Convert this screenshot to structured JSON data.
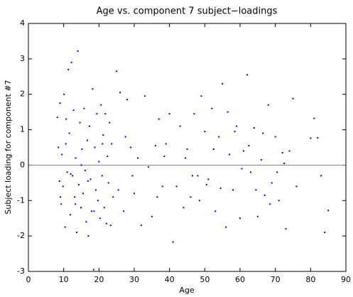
{
  "chart_data": {
    "type": "scatter",
    "title": "Age vs. component 7 subject−loadings",
    "x_label": "Age",
    "y_label": "Subject loading for component #7",
    "xlim": [
      0,
      90
    ],
    "xticks": [
      0,
      10,
      20,
      30,
      40,
      50,
      60,
      70,
      80,
      90
    ],
    "ylim": [
      -3,
      4
    ],
    "yticks": [
      -3,
      -2,
      -1,
      0,
      1,
      2,
      3,
      4
    ],
    "reference_line": {
      "y": 0,
      "color": "#808080"
    },
    "series": [
      {
        "color": "#0000ff",
        "x": [
          8.2,
          8.5,
          8.8,
          9.0,
          9.3,
          9.5,
          9.8,
          10.1,
          10.4,
          10.7,
          11.0,
          11.3,
          11.6,
          11.9,
          12.2,
          12.5,
          12.8,
          13.1,
          13.4,
          13.7,
          14.0,
          14.3,
          14.6,
          14.9,
          15.2,
          15.5,
          15.8,
          16.1,
          16.4,
          16.7,
          17.0,
          17.3,
          17.6,
          17.9,
          18.2,
          18.5,
          18.8,
          19.1,
          19.4,
          19.7,
          20.0,
          20.3,
          20.6,
          20.9,
          21.2,
          21.5,
          21.8,
          22.1,
          22.4,
          22.7,
          23.0,
          23.3,
          23.6,
          24.0,
          25.0,
          26.0,
          27.0,
          28.0,
          29.0,
          30.0,
          31.0,
          32.0,
          33.0,
          34.0,
          35.0,
          36.0,
          37.0,
          38.0,
          39.0,
          40.0,
          41.0,
          42.0,
          43.0,
          44.0,
          45.0,
          46.0,
          47.0,
          48.0,
          49.0,
          50.0,
          51.0,
          52.0,
          53.0,
          54.0,
          55.0,
          56.0,
          57.0,
          58.0,
          59.0,
          60.0,
          61.0,
          62.0,
          63.0,
          64.0,
          65.0,
          66.0,
          67.0,
          68.0,
          69.0,
          70.0,
          71.0,
          72.0,
          73.0,
          74.0,
          75.0,
          76.0,
          80.0,
          81.0,
          82.0,
          83.0,
          84.0,
          85.0,
          9.1,
          10.6,
          12.0,
          13.3,
          15.0,
          16.9,
          18.6,
          21.0,
          44.5,
          46.5,
          48.5,
          50.5,
          52.5,
          54.5,
          56.5,
          58.5,
          60.5,
          62.5,
          64.5,
          66.5,
          68.5,
          70.5,
          72.5,
          36.5,
          38.5,
          29.5,
          27.5,
          25.5
        ],
        "values": [
          1.35,
          0.5,
          -0.45,
          1.75,
          -1.1,
          0.3,
          -0.6,
          2.0,
          -1.75,
          1.3,
          -0.2,
          2.7,
          0.9,
          -1.4,
          2.9,
          -0.3,
          1.55,
          -0.9,
          0.2,
          -1.9,
          3.22,
          -0.55,
          1.2,
          -1.2,
          0.45,
          -0.8,
          1.6,
          -0.15,
          -1.6,
          0.7,
          -2.0,
          1.1,
          -0.4,
          -1.3,
          2.15,
          -2.95,
          0.5,
          -0.7,
          1.45,
          -1.0,
          0.1,
          -1.5,
          1.7,
          -0.3,
          0.85,
          -1.2,
          1.45,
          -1.65,
          0.25,
          -0.5,
          1.2,
          -1.7,
          0.6,
          -0.9,
          2.65,
          2.05,
          -1.3,
          1.85,
          0.5,
          -0.8,
          0.2,
          -1.7,
          1.95,
          -0.05,
          -1.45,
          0.55,
          1.3,
          -0.6,
          0.6,
          1.45,
          -2.17,
          -0.6,
          1.1,
          -1.2,
          0.45,
          -0.9,
          1.45,
          -0.3,
          1.95,
          0.95,
          -0.4,
          1.6,
          -1.3,
          0.8,
          2.3,
          -1.75,
          0.3,
          -0.7,
          1.1,
          -1.5,
          0.4,
          2.55,
          -0.2,
          1.05,
          -1.45,
          0.15,
          -0.85,
          1.7,
          -0.5,
          0.8,
          -1.0,
          0.35,
          -1.8,
          0.4,
          1.88,
          -0.6,
          0.76,
          1.32,
          0.77,
          -0.3,
          -1.9,
          -1.28,
          -0.9,
          0.6,
          -0.25,
          -1.1,
          0.0,
          -0.45,
          -1.3,
          0.6,
          0.2,
          -0.3,
          -1.0,
          -0.55,
          0.45,
          -0.65,
          1.5,
          0.95,
          -0.1,
          0.55,
          -0.7,
          0.9,
          -1.1,
          -0.2,
          0.05,
          -0.9,
          0.25,
          -0.3,
          0.8,
          -0.7
        ]
      }
    ]
  }
}
